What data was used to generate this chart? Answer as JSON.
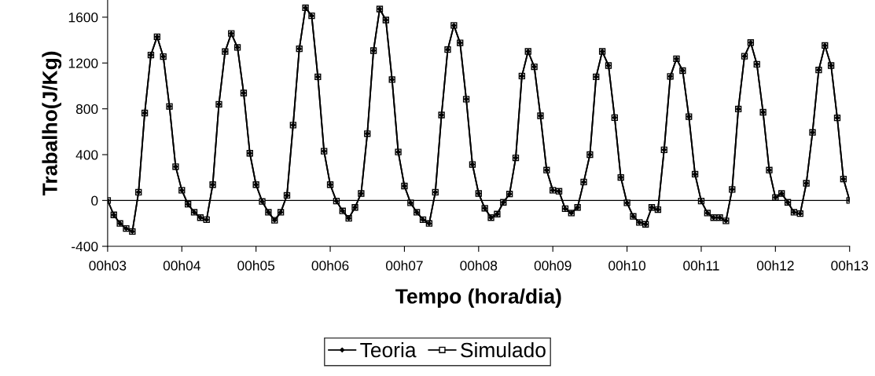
{
  "chart_data": {
    "type": "line",
    "xlabel": "Tempo (hora/dia)",
    "ylabel": "Trabalho(J/Kg)",
    "categories": [
      "00h03",
      null,
      null,
      null,
      null,
      null,
      null,
      null,
      null,
      null,
      null,
      null,
      "00h04",
      null,
      null,
      null,
      null,
      null,
      null,
      null,
      null,
      null,
      null,
      null,
      "00h05",
      null,
      null,
      null,
      null,
      null,
      null,
      null,
      null,
      null,
      null,
      null,
      "00h06",
      null,
      null,
      null,
      null,
      null,
      null,
      null,
      null,
      null,
      null,
      null,
      "00h07",
      null,
      null,
      null,
      null,
      null,
      null,
      null,
      null,
      null,
      null,
      null,
      "00h08",
      null,
      null,
      null,
      null,
      null,
      null,
      null,
      null,
      null,
      null,
      null,
      "00h09",
      null,
      null,
      null,
      null,
      null,
      null,
      null,
      null,
      null,
      null,
      null,
      "00h10",
      null,
      null,
      null,
      null,
      null,
      null,
      null,
      null,
      null,
      null,
      null,
      "00h11",
      null,
      null,
      null,
      null,
      null,
      null,
      null,
      null,
      null,
      null,
      null,
      "00h12",
      null,
      null,
      null,
      null,
      null,
      null,
      null,
      null,
      null,
      null,
      null,
      "00h13"
    ],
    "series": [
      {
        "name": "Teoria",
        "color": "#000000",
        "marker": "diamond",
        "values": [
          0,
          -126,
          -201,
          -245,
          -271,
          72,
          763,
          1270,
          1429,
          1256,
          821,
          295,
          89,
          -33,
          -103,
          -150,
          -168,
          138,
          840,
          1300,
          1458,
          1336,
          938,
          412,
          138,
          -9,
          -103,
          -173,
          -103,
          44,
          658,
          1324,
          1682,
          1612,
          1079,
          430,
          138,
          -5,
          -91,
          -156,
          -61,
          61,
          583,
          1308,
          1671,
          1575,
          1055,
          423,
          126,
          -21,
          -103,
          -168,
          -201,
          72,
          746,
          1317,
          1528,
          1376,
          884,
          314,
          61,
          -68,
          -150,
          -119,
          -16,
          56,
          372,
          1086,
          1301,
          1167,
          739,
          265,
          89,
          80,
          -72,
          -110,
          -61,
          161,
          400,
          1079,
          1301,
          1178,
          723,
          201,
          -21,
          -139,
          -192,
          -208,
          -61,
          -80,
          442,
          1083,
          1237,
          1133,
          732,
          229,
          -5,
          -110,
          -150,
          -150,
          -178,
          96,
          798,
          1259,
          1378,
          1189,
          770,
          265,
          26,
          61,
          -16,
          -103,
          -115,
          150,
          594,
          1139,
          1353,
          1178,
          721,
          187,
          0
        ]
      },
      {
        "name": "Simulado",
        "color": "#000000",
        "marker": "square",
        "values": [
          0,
          -126,
          -201,
          -245,
          -271,
          72,
          763,
          1270,
          1429,
          1256,
          821,
          295,
          89,
          -33,
          -103,
          -150,
          -168,
          138,
          840,
          1300,
          1458,
          1336,
          938,
          412,
          138,
          -9,
          -103,
          -173,
          -103,
          44,
          658,
          1324,
          1682,
          1612,
          1079,
          430,
          138,
          -5,
          -91,
          -156,
          -61,
          61,
          583,
          1308,
          1671,
          1575,
          1055,
          423,
          126,
          -21,
          -103,
          -168,
          -201,
          72,
          746,
          1317,
          1528,
          1376,
          884,
          314,
          61,
          -68,
          -150,
          -119,
          -16,
          56,
          372,
          1086,
          1301,
          1167,
          739,
          265,
          89,
          80,
          -72,
          -110,
          -61,
          161,
          400,
          1079,
          1301,
          1178,
          723,
          201,
          -21,
          -139,
          -192,
          -208,
          -61,
          -80,
          442,
          1083,
          1237,
          1133,
          732,
          229,
          -5,
          -110,
          -150,
          -150,
          -178,
          96,
          798,
          1259,
          1378,
          1189,
          770,
          265,
          26,
          61,
          -16,
          -103,
          -115,
          150,
          594,
          1139,
          1353,
          1178,
          721,
          187,
          0
        ]
      }
    ],
    "ylim": [
      -400,
      1750
    ],
    "yticks": [
      -400,
      0,
      400,
      800,
      1200,
      1600
    ],
    "ref_lines": [
      {
        "axis": "y",
        "value": 0,
        "color": "#000000"
      }
    ],
    "line_style": "solid",
    "grid": false,
    "legend": "bottom"
  }
}
